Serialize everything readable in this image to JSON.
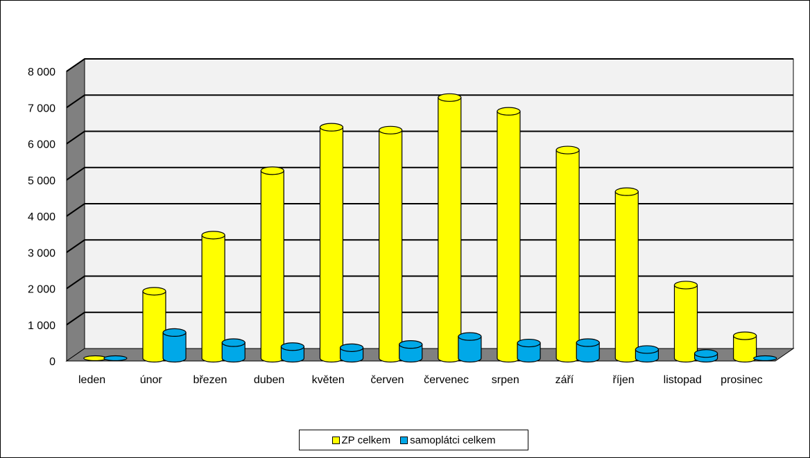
{
  "chart_data": {
    "type": "bar",
    "title": "",
    "xlabel": "",
    "ylabel": "",
    "categories": [
      "leden",
      "únor",
      "březen",
      "duben",
      "květen",
      "červen",
      "červenec",
      "srpen",
      "září",
      "říjen",
      "listopad",
      "prosinec"
    ],
    "series": [
      {
        "name": "ZP celkem",
        "color": "#FFFF00",
        "values": [
          0,
          1850,
          3400,
          5180,
          6380,
          6300,
          7200,
          6820,
          5750,
          4600,
          2020,
          620
        ]
      },
      {
        "name": "samoplátci celkem",
        "color": "#00A8E8",
        "values": [
          0,
          710,
          430,
          320,
          290,
          380,
          600,
          420,
          430,
          240,
          130,
          0
        ]
      }
    ],
    "ylim": [
      0,
      8000
    ],
    "yticks": [
      "0",
      "1 000",
      "2 000",
      "3 000",
      "4 000",
      "5 000",
      "6 000",
      "7 000",
      "8 000"
    ],
    "grid": true,
    "legend_position": "bottom",
    "wall_color": "#F2F2F2",
    "side_wall_color": "#808080"
  }
}
